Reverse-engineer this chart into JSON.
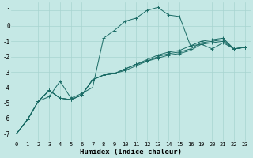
{
  "xlabel": "Humidex (Indice chaleur)",
  "background_color": "#c5e8e5",
  "grid_color": "#a8d4d0",
  "line_color": "#1a6b65",
  "xlim": [
    -0.5,
    21.5
  ],
  "ylim": [
    -7.5,
    1.5
  ],
  "yticks": [
    -7,
    -6,
    -5,
    -4,
    -3,
    -2,
    -1,
    0,
    1
  ],
  "xtick_labels": [
    "0",
    "1",
    "2",
    "3",
    "4",
    "5",
    "6",
    "7",
    "8",
    "9",
    "10",
    "11",
    "12",
    "13",
    "14",
    "15",
    "16",
    "19",
    "20",
    "21",
    "22",
    "23"
  ],
  "series": [
    {
      "xi": [
        0,
        1,
        2,
        3,
        4,
        5,
        6,
        7,
        8,
        9,
        10,
        11,
        12,
        13,
        14,
        15,
        16,
        17,
        18,
        19,
        20,
        21
      ],
      "y": [
        -7.0,
        -6.1,
        -4.9,
        -4.6,
        -3.6,
        -4.7,
        -4.4,
        -4.0,
        -0.8,
        -0.3,
        0.3,
        0.5,
        1.0,
        1.2,
        0.7,
        0.6,
        -1.3,
        -1.2,
        -1.5,
        -1.1,
        -1.5,
        -1.4
      ]
    },
    {
      "xi": [
        0,
        1,
        2,
        3,
        4,
        5,
        6,
        7,
        8,
        9,
        10,
        11,
        12,
        13,
        14,
        15,
        16,
        17,
        18,
        19,
        20,
        21
      ],
      "y": [
        -7.0,
        -6.1,
        -4.9,
        -4.2,
        -4.7,
        -4.8,
        -4.5,
        -3.5,
        -3.2,
        -3.1,
        -2.8,
        -2.5,
        -2.3,
        -2.0,
        -1.8,
        -1.7,
        -1.5,
        -1.1,
        -1.0,
        -0.9,
        -1.5,
        -1.4
      ]
    },
    {
      "xi": [
        0,
        1,
        2,
        3,
        4,
        5,
        6,
        7,
        8,
        9,
        10,
        11,
        12,
        13,
        14,
        15,
        16,
        17,
        18,
        19,
        20,
        21
      ],
      "y": [
        -7.0,
        -6.1,
        -4.9,
        -4.2,
        -4.7,
        -4.8,
        -4.5,
        -3.5,
        -3.2,
        -3.1,
        -2.8,
        -2.5,
        -2.2,
        -1.9,
        -1.7,
        -1.6,
        -1.3,
        -1.0,
        -0.9,
        -0.8,
        -1.5,
        -1.4
      ]
    },
    {
      "xi": [
        0,
        1,
        2,
        3,
        4,
        5,
        6,
        7,
        8,
        9,
        10,
        11,
        12,
        13,
        14,
        15,
        16,
        17,
        18,
        19,
        20,
        21
      ],
      "y": [
        -7.0,
        -6.1,
        -4.9,
        -4.2,
        -4.7,
        -4.8,
        -4.5,
        -3.5,
        -3.2,
        -3.1,
        -2.9,
        -2.6,
        -2.3,
        -2.1,
        -1.9,
        -1.8,
        -1.6,
        -1.2,
        -1.1,
        -1.0,
        -1.5,
        -1.4
      ]
    }
  ]
}
